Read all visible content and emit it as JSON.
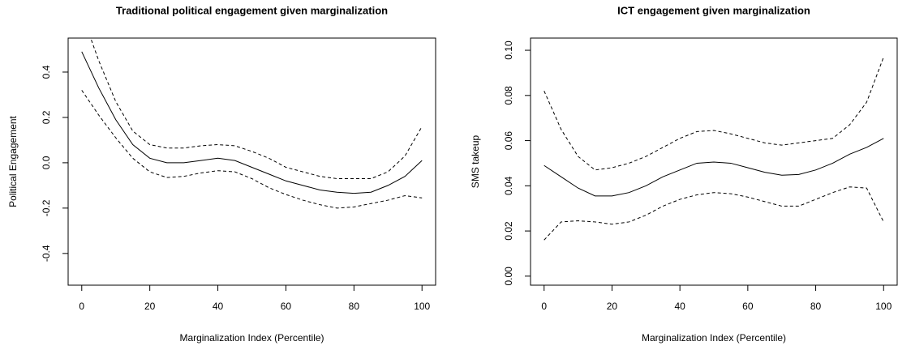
{
  "chart_data": [
    {
      "type": "line",
      "title": "Traditional political engagement given marginalization",
      "xlabel": "Marginalization Index (Percentile)",
      "ylabel": "Political Engagement",
      "x": [
        0,
        5,
        10,
        15,
        20,
        25,
        30,
        35,
        40,
        45,
        50,
        55,
        60,
        65,
        70,
        75,
        80,
        85,
        90,
        95,
        100
      ],
      "series": [
        {
          "color": "#000000",
          "linestyle": "solid",
          "values": [
            0.49,
            0.33,
            0.19,
            0.08,
            0.02,
            0.0,
            0.0,
            0.01,
            0.02,
            0.01,
            -0.02,
            -0.05,
            -0.08,
            -0.1,
            -0.12,
            -0.13,
            -0.135,
            -0.13,
            -0.1,
            -0.06,
            0.01
          ]
        },
        {
          "color": "#000000",
          "linestyle": "dashed",
          "values": [
            0.66,
            0.45,
            0.27,
            0.14,
            0.08,
            0.065,
            0.065,
            0.075,
            0.08,
            0.075,
            0.05,
            0.02,
            -0.02,
            -0.04,
            -0.06,
            -0.07,
            -0.07,
            -0.07,
            -0.04,
            0.03,
            0.16
          ]
        },
        {
          "color": "#000000",
          "linestyle": "dashed",
          "values": [
            0.32,
            0.21,
            0.11,
            0.02,
            -0.04,
            -0.065,
            -0.06,
            -0.045,
            -0.035,
            -0.04,
            -0.07,
            -0.11,
            -0.14,
            -0.165,
            -0.185,
            -0.2,
            -0.195,
            -0.18,
            -0.165,
            -0.145,
            -0.155
          ]
        }
      ],
      "xlim": [
        -4,
        104
      ],
      "xticks": [
        0,
        20,
        40,
        60,
        80,
        100
      ],
      "ylim": [
        -0.54,
        0.55
      ],
      "yticks": [
        -0.4,
        -0.2,
        {
          "value": 0,
          "label": "0.0"
        },
        0.2,
        0.4
      ]
    },
    {
      "type": "line",
      "title": "ICT engagement given marginalization",
      "xlabel": "Marginalization Index (Percentile)",
      "ylabel": "SMS takeup",
      "x": [
        0,
        5,
        10,
        15,
        20,
        25,
        30,
        35,
        40,
        45,
        50,
        55,
        60,
        65,
        70,
        75,
        80,
        85,
        90,
        95,
        100
      ],
      "series": [
        {
          "color": "#000000",
          "linestyle": "solid",
          "values": [
            0.049,
            0.044,
            0.039,
            0.0355,
            0.0355,
            0.037,
            0.04,
            0.044,
            0.047,
            0.05,
            0.0505,
            0.05,
            0.048,
            0.046,
            0.0447,
            0.045,
            0.047,
            0.05,
            0.054,
            0.057,
            0.061
          ]
        },
        {
          "color": "#000000",
          "linestyle": "dashed",
          "values": [
            0.082,
            0.065,
            0.053,
            0.047,
            0.048,
            0.05,
            0.053,
            0.057,
            0.061,
            0.064,
            0.0645,
            0.063,
            0.061,
            0.059,
            0.058,
            0.059,
            0.06,
            0.061,
            0.067,
            0.077,
            0.097
          ]
        },
        {
          "color": "#000000",
          "linestyle": "dashed",
          "values": [
            0.016,
            0.024,
            0.0245,
            0.024,
            0.023,
            0.024,
            0.027,
            0.031,
            0.034,
            0.036,
            0.037,
            0.0365,
            0.035,
            0.033,
            0.031,
            0.031,
            0.034,
            0.037,
            0.0395,
            0.039,
            0.024
          ]
        }
      ],
      "xlim": [
        -4,
        104
      ],
      "xticks": [
        0,
        20,
        40,
        60,
        80,
        100
      ],
      "ylim": [
        -0.004,
        0.1054
      ],
      "yticks": [
        {
          "value": 0,
          "label": "0.00"
        },
        0.02,
        0.04,
        0.06,
        0.08,
        {
          "value": 0.1,
          "label": "0.10"
        }
      ]
    }
  ]
}
